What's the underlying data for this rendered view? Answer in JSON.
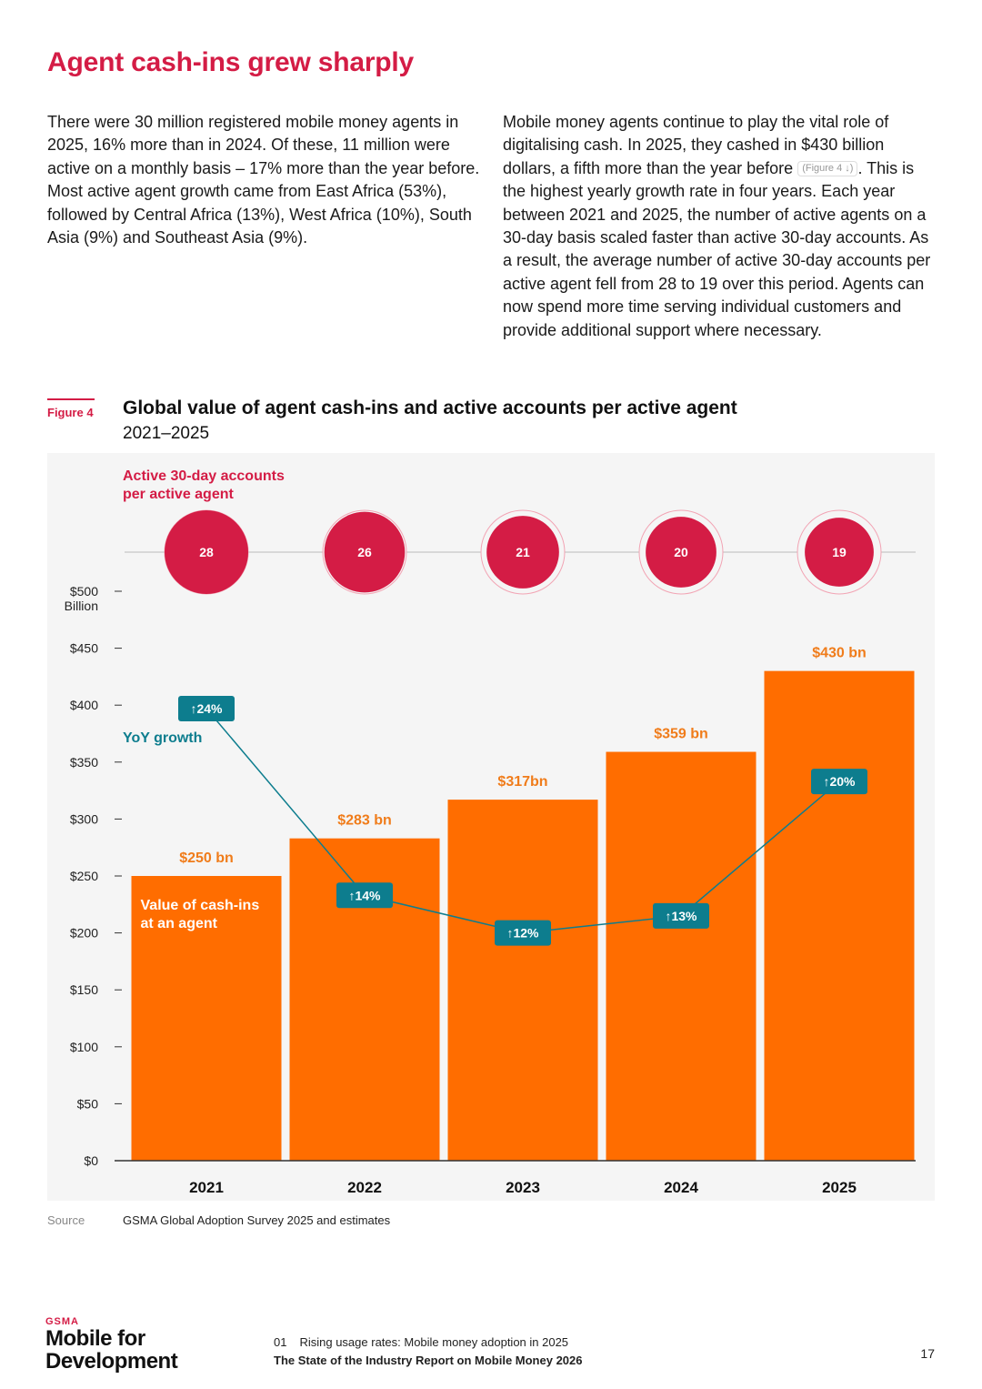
{
  "page": {
    "title": "Agent cash-ins grew sharply",
    "para_left": "There were 30 million registered mobile money agents in 2025, 16% more than in 2024. Of these, 11 million were active on a monthly basis – 17% more than the year before. Most active agent growth came from East Africa (53%), followed by Central Africa (13%), West Africa (10%), South Asia (9%) and Southeast Asia (9%).",
    "para_right_1": "Mobile money agents continue to play the vital role of digitalising cash. In 2025, they cashed in $430 billion dollars, a fifth more than the year before",
    "para_right_ref": "(Figure 4 ↓)",
    "para_right_2": ". This is the highest yearly growth rate in four years. Each year between 2021 and 2025, the number of active agents on a 30-day basis scaled faster than active 30-day accounts. As a result, the average number of active 30-day accounts per active agent fell from 28 to 19 over this period. Agents can now spend more time serving individual customers and provide additional support where necessary."
  },
  "figure": {
    "tag": "Figure 4",
    "title": "Global value of agent cash-ins and active accounts per active agent",
    "subtitle": "2021–2025",
    "source_label": "Source",
    "source_text": "GSMA Global Adoption Survey 2025 and estimates"
  },
  "footer": {
    "logo_small": "GSMA",
    "logo_line1": "Mobile for",
    "logo_line2": "Development",
    "section_num": "01",
    "section_title": "Rising usage rates: Mobile money adoption in 2025",
    "report_title": "The State of the Industry Report on Mobile Money 2026",
    "page_number": "17"
  },
  "colors": {
    "bar": "#ff6d00",
    "bar_label": "#f07c1a",
    "circle": "#d41c45",
    "yoy": "#0d7d8e",
    "axis": "#333333"
  },
  "chart_data": {
    "type": "bar",
    "categories": [
      "2021",
      "2022",
      "2023",
      "2024",
      "2025"
    ],
    "values": [
      250,
      283,
      317,
      359,
      430
    ],
    "value_labels": [
      "$250 bn",
      "$283 bn",
      "$317bn",
      "$359 bn",
      "$430 bn"
    ],
    "bar_label_text": [
      "Value of cash-ins",
      "at an agent"
    ],
    "ylim": [
      0,
      500
    ],
    "yticks": [
      0,
      50,
      100,
      150,
      200,
      250,
      300,
      350,
      400,
      450,
      500
    ],
    "ytick_labels": [
      "$0",
      "$50",
      "$100",
      "$150",
      "$200",
      "$250",
      "$300",
      "$350",
      "$400",
      "$450",
      "$500"
    ],
    "yaxis_unit": "Billion",
    "yoy_series": {
      "name": "YoY growth",
      "values": [
        24,
        14,
        12,
        13,
        20
      ],
      "labels": [
        "↑24%",
        "↑14%",
        "↑12%",
        "↑13%",
        "↑20%"
      ],
      "plotted_at": [
        397,
        233,
        200,
        215,
        333
      ]
    },
    "accounts_series": {
      "name_lines": [
        "Active 30-day accounts",
        "per active agent"
      ],
      "values": [
        28,
        26,
        21,
        20,
        19
      ]
    }
  }
}
